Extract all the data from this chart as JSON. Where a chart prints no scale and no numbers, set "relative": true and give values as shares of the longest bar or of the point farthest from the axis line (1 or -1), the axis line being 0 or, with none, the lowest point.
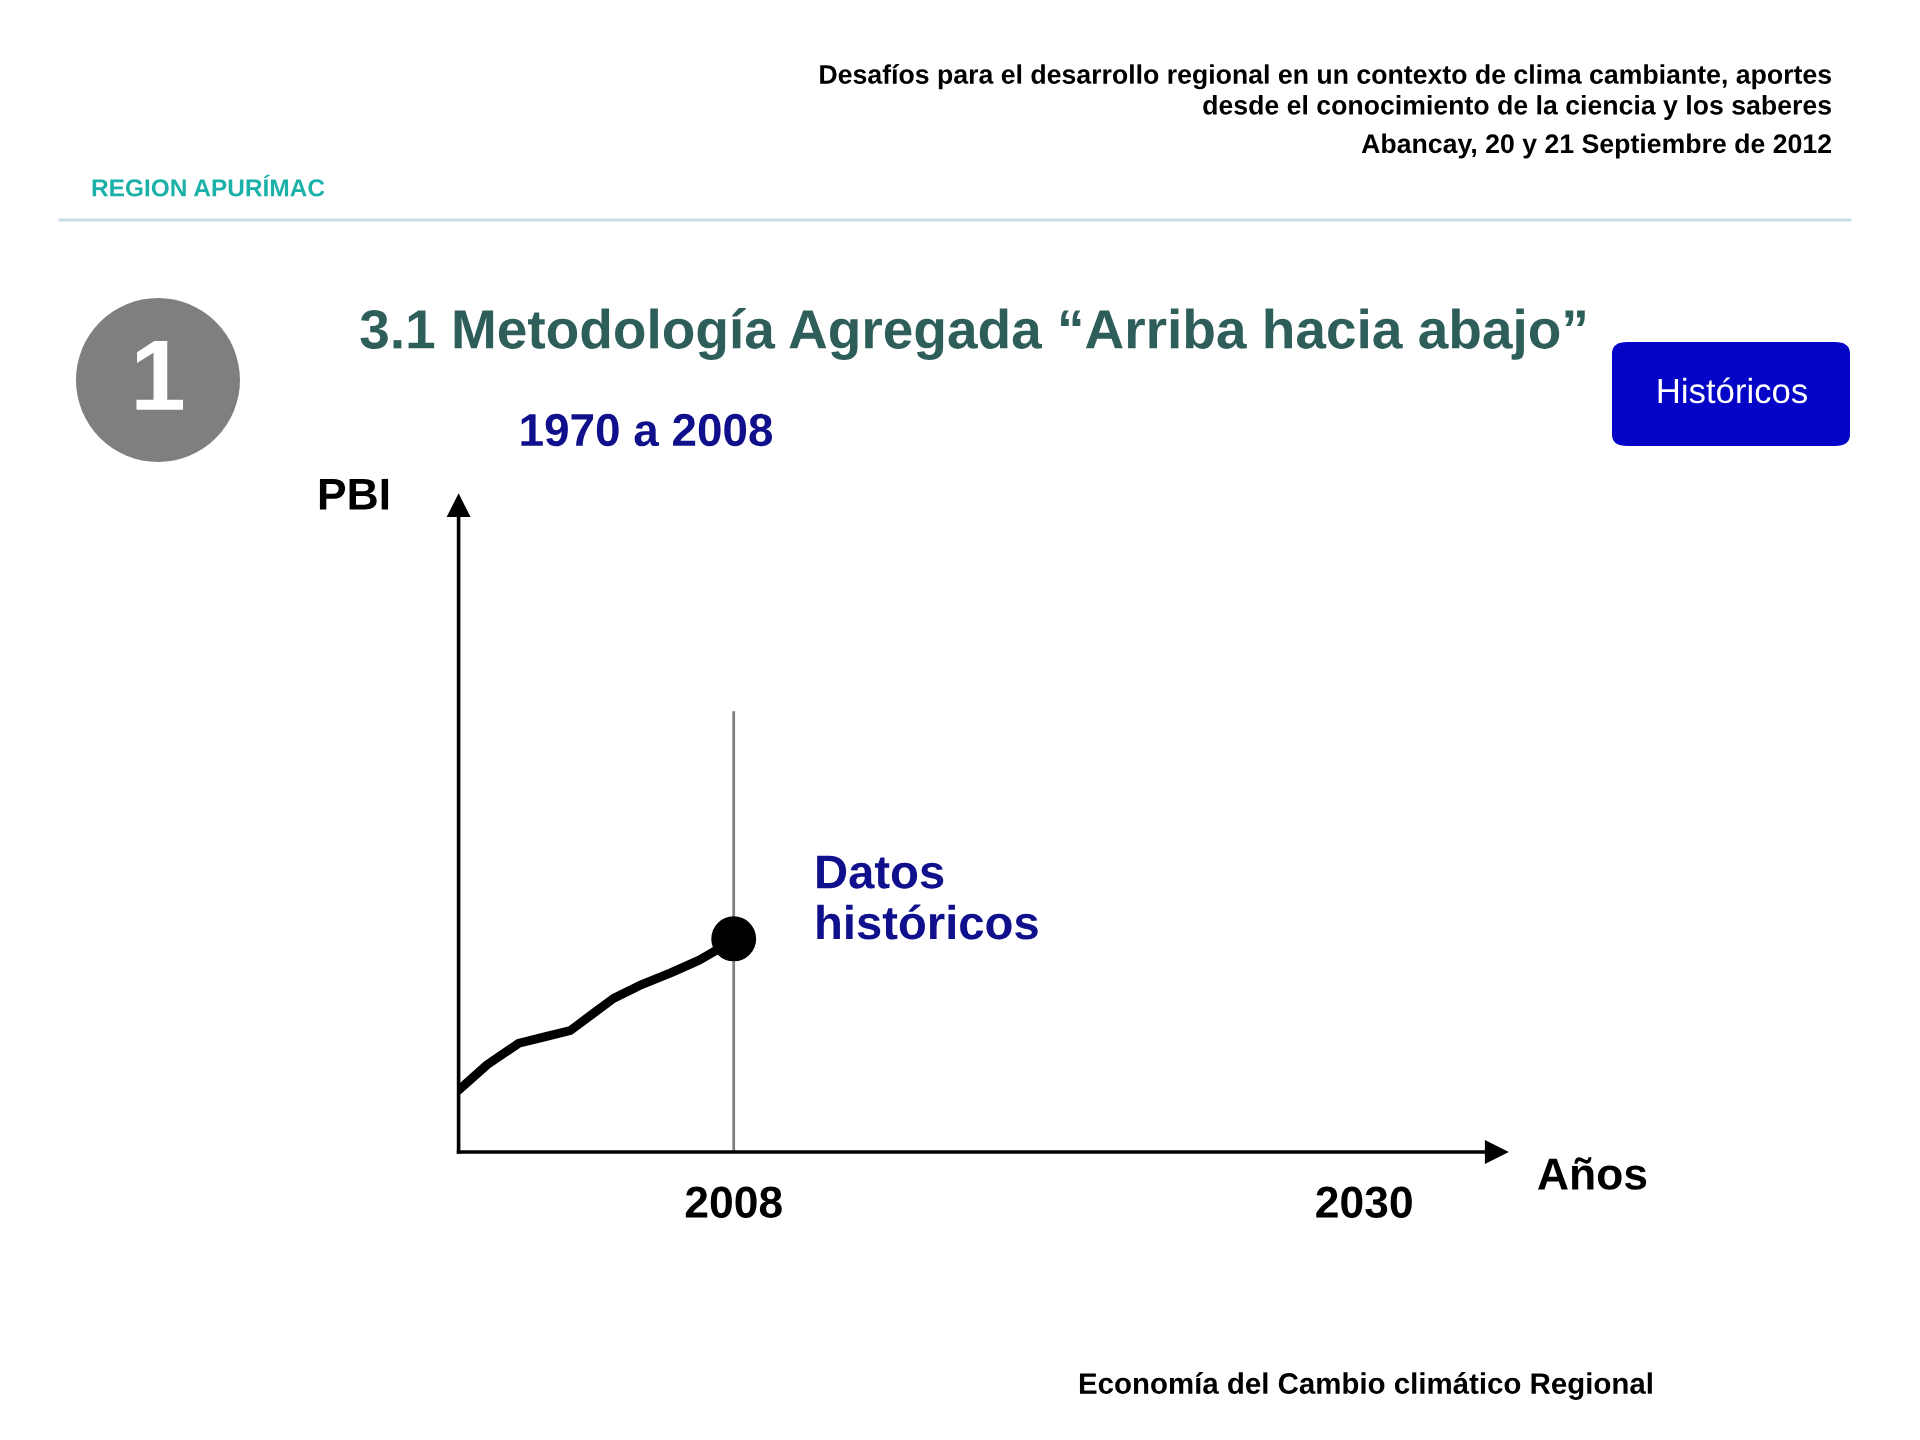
{
  "chart_data": {
    "type": "line",
    "title": "3.1 Metodología Agregada “Arriba hacia abajo”",
    "subtitle": "1970 a 2008",
    "xlabel": "Años",
    "relative": true,
    "tick_labels": "x",
    "xlim": [
      1998.4,
      2034.6
    ],
    "xticks": [
      2008,
      2030
    ],
    "line_style": "solid",
    "series": [
      {
        "color": "#000000",
        "x": [
          1998.4,
          1999.4,
          2000.5,
          2001.4,
          2002.3,
          2003.1,
          2003.8,
          2004.7,
          2005.8,
          2006.8,
          2007.7,
          2008
        ],
        "values": [
          0.29,
          0.41,
          0.51,
          0.54,
          0.57,
          0.65,
          0.72,
          0.78,
          0.84,
          0.9,
          0.97,
          1.0
        ]
      },
      {
        "type": "scatter",
        "marker": "circle",
        "color": "#000000",
        "x": [
          2008
        ],
        "values": [
          1.0
        ]
      }
    ],
    "ref_lines": [
      {
        "axis": "x",
        "value": 2008,
        "color": "#808080"
      }
    ],
    "annotations": [
      "REGION APURÍMAC",
      "Desafíos para el desarrollo regional en un contexto de clima cambiante, aportes\ndesde el conocimiento de la ciencia y los saberes",
      "Abancay, 20 y 21 Septiembre de 2012",
      "1",
      "Históricos",
      "Datos\nhistóricos",
      "Economía del Cambio climático Regional",
      "PBI"
    ]
  }
}
